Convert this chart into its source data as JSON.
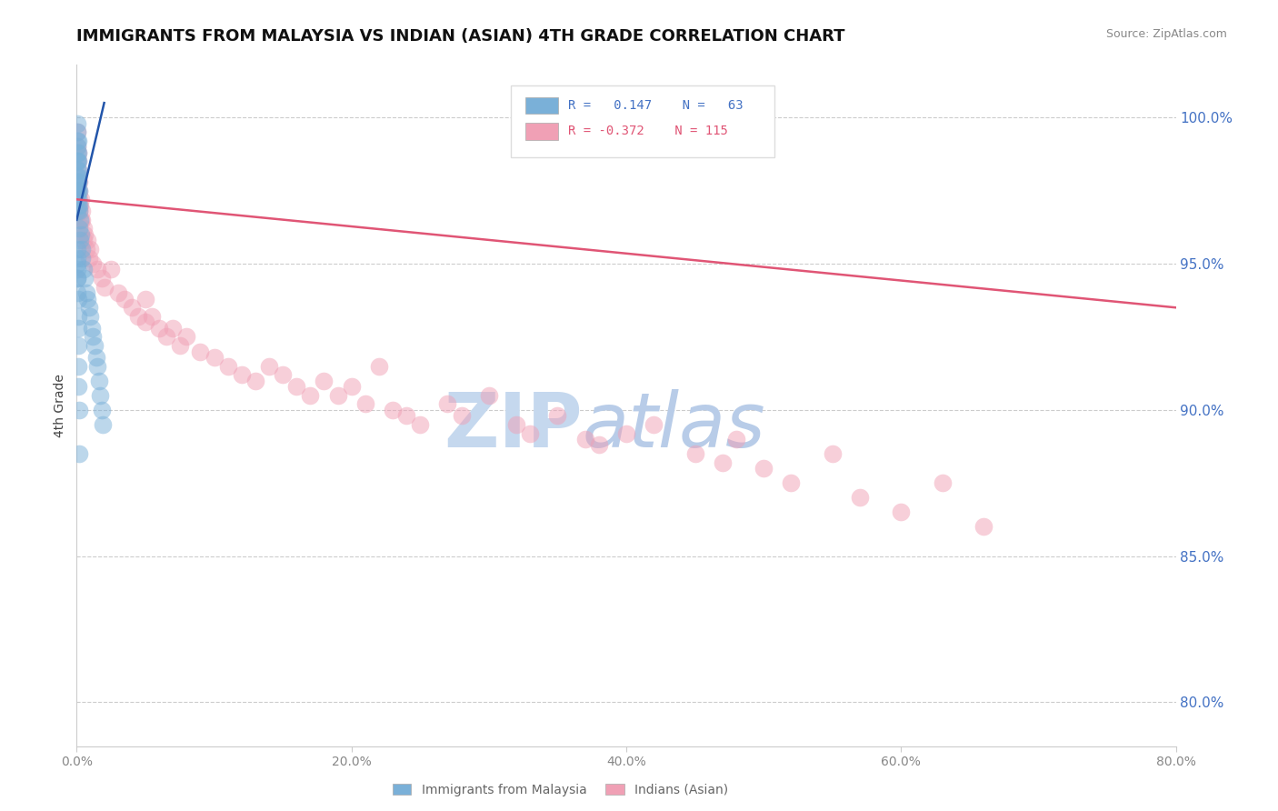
{
  "title": "IMMIGRANTS FROM MALAYSIA VS INDIAN (ASIAN) 4TH GRADE CORRELATION CHART",
  "source": "Source: ZipAtlas.com",
  "ylabel": "4th Grade",
  "y_ticks": [
    80.0,
    85.0,
    90.0,
    95.0,
    100.0
  ],
  "x_ticks": [
    0,
    20,
    40,
    60,
    80
  ],
  "x_range": [
    0.0,
    80.0
  ],
  "y_range": [
    78.5,
    101.8
  ],
  "color_blue": "#7ab0d8",
  "color_pink": "#f0a0b5",
  "color_blue_line": "#2255aa",
  "color_pink_line": "#e05575",
  "watermark_zip": "ZIP",
  "watermark_atlas": "atlas",
  "watermark_color_zip": "#c5d8ee",
  "watermark_color_atlas": "#b8cce8",
  "blue_x": [
    0.05,
    0.05,
    0.05,
    0.05,
    0.05,
    0.05,
    0.05,
    0.05,
    0.05,
    0.05,
    0.07,
    0.07,
    0.07,
    0.07,
    0.08,
    0.08,
    0.08,
    0.08,
    0.1,
    0.1,
    0.1,
    0.1,
    0.12,
    0.12,
    0.15,
    0.15,
    0.2,
    0.2,
    0.25,
    0.25,
    0.3,
    0.35,
    0.4,
    0.5,
    0.6,
    0.7,
    0.8,
    0.9,
    1.0,
    1.1,
    1.2,
    1.3,
    1.4,
    1.5,
    1.6,
    1.7,
    1.8,
    1.9,
    0.05,
    0.05,
    0.05,
    0.06,
    0.06,
    0.07,
    0.07,
    0.08,
    0.09,
    0.1,
    0.11,
    0.12,
    0.14,
    0.16,
    0.2
  ],
  "blue_y": [
    99.8,
    99.5,
    99.2,
    98.8,
    98.5,
    98.2,
    97.8,
    97.5,
    97.2,
    96.8,
    99.0,
    98.5,
    98.0,
    97.5,
    99.2,
    98.8,
    98.2,
    97.8,
    98.5,
    98.0,
    97.5,
    97.0,
    97.8,
    97.2,
    97.5,
    97.0,
    96.8,
    96.2,
    96.5,
    95.8,
    96.0,
    95.5,
    95.2,
    94.8,
    94.5,
    94.0,
    93.8,
    93.5,
    93.2,
    92.8,
    92.5,
    92.2,
    91.8,
    91.5,
    91.0,
    90.5,
    90.0,
    89.5,
    95.5,
    95.0,
    94.5,
    95.2,
    94.8,
    94.5,
    94.0,
    93.8,
    93.2,
    92.8,
    92.2,
    91.5,
    90.8,
    90.0,
    88.5
  ],
  "pink_x": [
    0.05,
    0.05,
    0.08,
    0.1,
    0.12,
    0.15,
    0.18,
    0.2,
    0.2,
    0.25,
    0.3,
    0.3,
    0.35,
    0.4,
    0.5,
    0.5,
    0.6,
    0.7,
    0.8,
    0.9,
    1.0,
    1.2,
    1.5,
    1.8,
    2.0,
    2.5,
    3.0,
    3.5,
    4.0,
    4.5,
    5.0,
    5.0,
    5.5,
    6.0,
    6.5,
    7.0,
    7.5,
    8.0,
    9.0,
    10.0,
    11.0,
    12.0,
    13.0,
    14.0,
    15.0,
    16.0,
    17.0,
    18.0,
    19.0,
    20.0,
    21.0,
    22.0,
    23.0,
    24.0,
    25.0,
    27.0,
    28.0,
    30.0,
    32.0,
    33.0,
    35.0,
    37.0,
    38.0,
    40.0,
    42.0,
    45.0,
    47.0,
    48.0,
    50.0,
    52.0,
    55.0,
    57.0,
    60.0,
    63.0,
    66.0
  ],
  "pink_y": [
    99.5,
    99.0,
    98.8,
    98.5,
    98.2,
    97.8,
    97.5,
    97.2,
    96.8,
    97.0,
    96.5,
    97.2,
    96.8,
    96.5,
    96.2,
    95.8,
    96.0,
    95.5,
    95.8,
    95.2,
    95.5,
    95.0,
    94.8,
    94.5,
    94.2,
    94.8,
    94.0,
    93.8,
    93.5,
    93.2,
    93.8,
    93.0,
    93.2,
    92.8,
    92.5,
    92.8,
    92.2,
    92.5,
    92.0,
    91.8,
    91.5,
    91.2,
    91.0,
    91.5,
    91.2,
    90.8,
    90.5,
    91.0,
    90.5,
    90.8,
    90.2,
    91.5,
    90.0,
    89.8,
    89.5,
    90.2,
    89.8,
    90.5,
    89.5,
    89.2,
    89.8,
    89.0,
    88.8,
    89.2,
    89.5,
    88.5,
    88.2,
    89.0,
    88.0,
    87.5,
    88.5,
    87.0,
    86.5,
    87.5,
    86.0
  ],
  "blue_line_x": [
    0.0,
    2.0
  ],
  "blue_line_y": [
    96.5,
    100.5
  ],
  "pink_line_x": [
    0.0,
    80.0
  ],
  "pink_line_y": [
    97.2,
    93.5
  ]
}
